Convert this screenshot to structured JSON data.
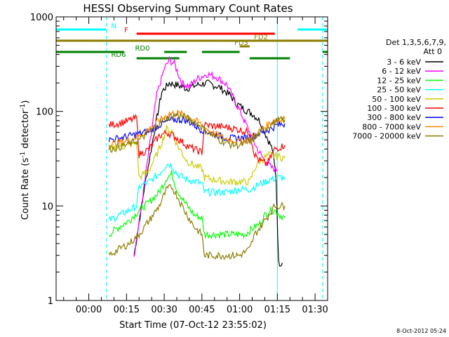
{
  "chart_data": {
    "type": "line",
    "title": "HESSI Observing Summary Count Rates",
    "xlabel": "Start Time (07-Oct-12 23:55:02)",
    "ylabel_main": "Count Rate (s",
    "ylabel_sup1": "-1",
    "ylabel_mid": " detector",
    "ylabel_sup2": "-1",
    "ylabel_end": ")",
    "y_scale": "log",
    "ylim": [
      1,
      1000
    ],
    "xlim": [
      -13,
      95
    ],
    "x_ticks": [
      {
        "label": "00:00",
        "value": 0
      },
      {
        "label": "00:15",
        "value": 15
      },
      {
        "label": "00:30",
        "value": 30
      },
      {
        "label": "00:45",
        "value": 45
      },
      {
        "label": "01:00",
        "value": 60
      },
      {
        "label": "01:15",
        "value": 75
      },
      {
        "label": "01:30",
        "value": 90
      }
    ],
    "y_ticks": [
      {
        "label": "1",
        "value": 1
      },
      {
        "label": "10",
        "value": 10
      },
      {
        "label": "100",
        "value": 100
      },
      {
        "label": "1000",
        "value": 1000
      }
    ],
    "legend_header": [
      "Det 1,3,5,6,7,9,",
      "Att 0"
    ],
    "legend_position": "right",
    "series": [
      {
        "name": "3 - 6 keV",
        "color": "#000000",
        "points": [
          [
            18,
            3
          ],
          [
            22,
            15
          ],
          [
            26,
            60
          ],
          [
            29,
            160
          ],
          [
            32,
            200
          ],
          [
            35,
            190
          ],
          [
            39,
            175
          ],
          [
            43,
            190
          ],
          [
            47,
            200
          ],
          [
            52,
            180
          ],
          [
            56,
            150
          ],
          [
            59,
            120
          ],
          [
            62,
            105
          ],
          [
            65,
            95
          ],
          [
            68,
            80
          ],
          [
            70,
            60
          ],
          [
            73,
            40
          ],
          [
            74.5,
            20
          ],
          [
            75.5,
            2.5
          ],
          [
            77,
            2.5
          ]
        ]
      },
      {
        "name": "6 - 12 keV",
        "color": "#ff00ff",
        "points": [
          [
            18,
            3
          ],
          [
            21,
            10
          ],
          [
            24,
            40
          ],
          [
            27,
            150
          ],
          [
            30,
            280
          ],
          [
            32,
            350
          ],
          [
            34,
            320
          ],
          [
            37,
            200
          ],
          [
            40,
            185
          ],
          [
            43,
            220
          ],
          [
            47,
            250
          ],
          [
            51,
            230
          ],
          [
            55,
            190
          ],
          [
            58,
            130
          ],
          [
            61,
            90
          ],
          [
            64,
            60
          ],
          [
            67,
            40
          ],
          [
            70,
            30
          ],
          [
            73,
            25
          ],
          [
            75,
            24
          ]
        ]
      },
      {
        "name": "12 - 25 keV",
        "color": "#00ff00",
        "points": [
          [
            8,
            5
          ],
          [
            12,
            6
          ],
          [
            16,
            7
          ],
          [
            20,
            9
          ],
          [
            24,
            11
          ],
          [
            28,
            14
          ],
          [
            31,
            20
          ],
          [
            33,
            22
          ],
          [
            35,
            15
          ],
          [
            38,
            11
          ],
          [
            42,
            8
          ],
          [
            45,
            7.5
          ],
          [
            46,
            5
          ],
          [
            50,
            5
          ],
          [
            54,
            5
          ],
          [
            58,
            5
          ],
          [
            62,
            5
          ],
          [
            66,
            6
          ],
          [
            68,
            6.5
          ],
          [
            70,
            8
          ],
          [
            72,
            9
          ],
          [
            74,
            9
          ],
          [
            76,
            8
          ],
          [
            78,
            7.5
          ]
        ]
      },
      {
        "name": "25 - 50 keV",
        "color": "#00ffff",
        "points": [
          [
            8,
            7
          ],
          [
            12,
            8
          ],
          [
            16,
            9
          ],
          [
            19,
            10
          ],
          [
            20,
            16
          ],
          [
            24,
            18
          ],
          [
            28,
            22
          ],
          [
            31,
            28
          ],
          [
            33,
            27
          ],
          [
            35,
            22
          ],
          [
            39,
            19
          ],
          [
            43,
            18
          ],
          [
            45,
            17
          ],
          [
            46,
            14
          ],
          [
            50,
            14
          ],
          [
            55,
            14
          ],
          [
            60,
            15
          ],
          [
            64,
            15
          ],
          [
            66,
            16
          ],
          [
            68,
            17
          ],
          [
            72,
            19
          ],
          [
            76,
            20
          ],
          [
            78,
            20
          ]
        ]
      },
      {
        "name": "50 - 100 keV",
        "color": "#cccc00",
        "points": [
          [
            8,
            40
          ],
          [
            12,
            42
          ],
          [
            16,
            44
          ],
          [
            19,
            47
          ],
          [
            20,
            20
          ],
          [
            24,
            24
          ],
          [
            28,
            40
          ],
          [
            31,
            65
          ],
          [
            33,
            62
          ],
          [
            35,
            45
          ],
          [
            39,
            30
          ],
          [
            43,
            26
          ],
          [
            45,
            25
          ],
          [
            46,
            20
          ],
          [
            50,
            19
          ],
          [
            55,
            18
          ],
          [
            60,
            18
          ],
          [
            64,
            18
          ],
          [
            66,
            25
          ],
          [
            68,
            30
          ],
          [
            72,
            35
          ],
          [
            76,
            33
          ],
          [
            78,
            32
          ]
        ]
      },
      {
        "name": "100 - 300 keV",
        "color": "#ff0000",
        "points": [
          [
            8,
            72
          ],
          [
            12,
            75
          ],
          [
            16,
            80
          ],
          [
            19,
            85
          ],
          [
            20,
            35
          ],
          [
            24,
            40
          ],
          [
            28,
            55
          ],
          [
            31,
            60
          ],
          [
            33,
            57
          ],
          [
            36,
            50
          ],
          [
            40,
            42
          ],
          [
            44,
            38
          ],
          [
            45,
            37
          ],
          [
            46,
            72
          ],
          [
            50,
            70
          ],
          [
            55,
            68
          ],
          [
            60,
            64
          ],
          [
            64,
            60
          ],
          [
            66,
            35
          ],
          [
            68,
            30
          ],
          [
            71,
            28
          ],
          [
            74,
            40
          ],
          [
            78,
            44
          ]
        ]
      },
      {
        "name": "300 - 800 keV",
        "color": "#0000ff",
        "points": [
          [
            8,
            50
          ],
          [
            12,
            52
          ],
          [
            16,
            55
          ],
          [
            20,
            58
          ],
          [
            24,
            62
          ],
          [
            28,
            72
          ],
          [
            32,
            80
          ],
          [
            35,
            82
          ],
          [
            38,
            82
          ],
          [
            41,
            75
          ],
          [
            44,
            66
          ],
          [
            48,
            60
          ],
          [
            52,
            55
          ],
          [
            56,
            52
          ],
          [
            60,
            52
          ],
          [
            63,
            53
          ],
          [
            66,
            56
          ],
          [
            69,
            60
          ],
          [
            72,
            65
          ],
          [
            75,
            72
          ],
          [
            78,
            74
          ]
        ]
      },
      {
        "name": "800 - 7000 keV",
        "color": "#ff8800",
        "points": [
          [
            8,
            45
          ],
          [
            12,
            47
          ],
          [
            16,
            50
          ],
          [
            20,
            55
          ],
          [
            24,
            65
          ],
          [
            28,
            80
          ],
          [
            32,
            95
          ],
          [
            35,
            96
          ],
          [
            38,
            92
          ],
          [
            41,
            85
          ],
          [
            44,
            75
          ],
          [
            48,
            62
          ],
          [
            52,
            55
          ],
          [
            56,
            50
          ],
          [
            60,
            48
          ],
          [
            63,
            50
          ],
          [
            66,
            56
          ],
          [
            69,
            65
          ],
          [
            72,
            75
          ],
          [
            75,
            82
          ],
          [
            78,
            84
          ]
        ]
      },
      {
        "name": "7000 - 20000 keV",
        "color": "#8b7d00",
        "points": [
          [
            8,
            40
          ],
          [
            12,
            42
          ],
          [
            16,
            45
          ],
          [
            20,
            50
          ],
          [
            24,
            60
          ],
          [
            28,
            75
          ],
          [
            32,
            88
          ],
          [
            35,
            92
          ],
          [
            38,
            88
          ],
          [
            41,
            80
          ],
          [
            44,
            72
          ],
          [
            48,
            58
          ],
          [
            52,
            50
          ],
          [
            56,
            45
          ],
          [
            60,
            44
          ],
          [
            63,
            46
          ],
          [
            66,
            52
          ],
          [
            69,
            62
          ],
          [
            72,
            72
          ],
          [
            75,
            80
          ],
          [
            78,
            82
          ]
        ]
      },
      {
        "name": "",
        "color": "#8b7d00",
        "points": [
          [
            8,
            3
          ],
          [
            12,
            3.5
          ],
          [
            16,
            4
          ],
          [
            20,
            5
          ],
          [
            24,
            7
          ],
          [
            28,
            10
          ],
          [
            31,
            15
          ],
          [
            33,
            16
          ],
          [
            35,
            13
          ],
          [
            38,
            9
          ],
          [
            42,
            6
          ],
          [
            45,
            5
          ],
          [
            46,
            3
          ],
          [
            50,
            3
          ],
          [
            55,
            3
          ],
          [
            60,
            3
          ],
          [
            64,
            3.5
          ],
          [
            66,
            5
          ],
          [
            70,
            7
          ],
          [
            74,
            10
          ],
          [
            78,
            10
          ]
        ]
      }
    ],
    "status_bars": [
      {
        "label": "N",
        "color": "#00ffff",
        "segments": [
          [
            -13,
            7
          ],
          [
            83,
            95
          ]
        ]
      },
      {
        "label": "F",
        "color": "#ff0000",
        "segments": [
          [
            19,
            74
          ]
        ]
      },
      {
        "label": "FD2",
        "color": "#8b7d00",
        "segments": [
          [
            -13,
            95
          ]
        ]
      },
      {
        "label": "FD3",
        "color": "#8b7d00",
        "segments": [
          [
            60,
            64
          ]
        ]
      },
      {
        "label": "RD0",
        "color": "#008000",
        "segments": [
          [
            -13,
            14
          ],
          [
            30,
            39
          ],
          [
            45,
            60
          ],
          [
            93,
            95
          ]
        ]
      },
      {
        "label": "RD6",
        "color": "#008000",
        "segments": [
          [
            19,
            36
          ],
          [
            64,
            80
          ]
        ]
      }
    ],
    "vlines": [
      {
        "x": -13,
        "color": "#00ffff",
        "style": "solid"
      },
      {
        "x": 7,
        "color": "#00ffff",
        "style": "dashed"
      },
      {
        "x": 75,
        "color": "#00ffff",
        "style": "solid"
      },
      {
        "x": 93,
        "color": "#00ffff",
        "style": "dashed"
      }
    ],
    "timestamp": "8-Oct-2012 05:24"
  }
}
